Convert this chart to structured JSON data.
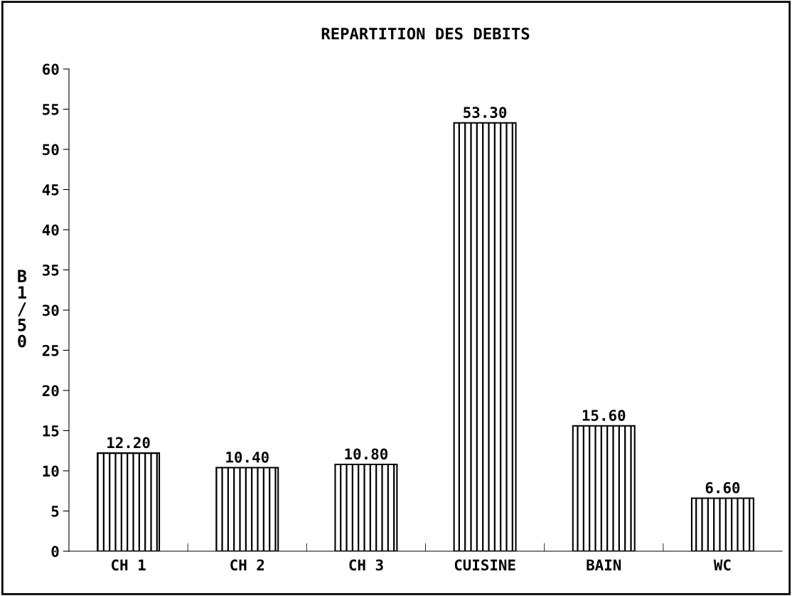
{
  "chart_data": {
    "type": "bar",
    "title": "REPARTITION DES DEBITS",
    "ylabel": "B1/50",
    "categories": [
      "CH 1",
      "CH 2",
      "CH 3",
      "CUISINE",
      "BAIN",
      "WC"
    ],
    "values": [
      12.2,
      10.4,
      10.8,
      53.3,
      15.6,
      6.6
    ],
    "value_labels": [
      "12.20",
      "10.40",
      "10.80",
      "53.30",
      "15.60",
      "6.60"
    ],
    "color": "#000000",
    "ylim": [
      0,
      60
    ],
    "yticks": [
      0,
      5,
      10,
      15,
      20,
      25,
      30,
      35,
      40,
      45,
      50,
      55,
      60
    ],
    "grid": false
  }
}
